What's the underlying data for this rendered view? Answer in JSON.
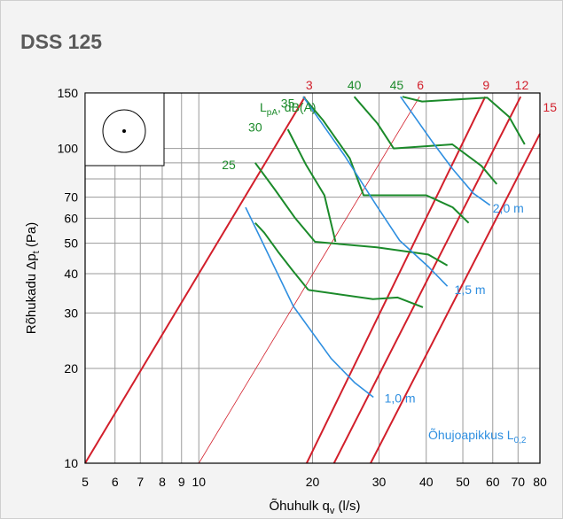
{
  "chart_data": {
    "type": "line",
    "title": "DSS 125",
    "xlabel_main": "Õhuhulk q",
    "xlabel_sub": "v",
    "xlabel_unit": " (l/s)",
    "ylabel_main": "Rõhukadu Δp",
    "ylabel_sub": "t",
    "ylabel_unit": " (Pa)",
    "x_scale": "log",
    "y_scale": "log",
    "xlim": [
      5,
      80
    ],
    "ylim": [
      10,
      150
    ],
    "grid": true,
    "x_ticks": [
      5,
      6,
      7,
      8,
      9,
      10,
      20,
      30,
      40,
      50,
      60,
      70,
      80
    ],
    "y_ticks": [
      10,
      20,
      30,
      40,
      50,
      60,
      70,
      100,
      150
    ],
    "x_gridlines": [
      5,
      6,
      7,
      8,
      9,
      10,
      20,
      30,
      40,
      50,
      60,
      70,
      80
    ],
    "y_gridlines": [
      10,
      20,
      30,
      40,
      50,
      60,
      70,
      80,
      90,
      100,
      150
    ],
    "colors": {
      "effective_area": "#d21f2b",
      "noise": "#1b8a2a",
      "throw": "#2f8fe0",
      "axis": "#000000",
      "grid": "#9a9a9a"
    },
    "effective_area_lines": [
      {
        "label": "3",
        "points": [
          [
            5,
            10
          ],
          [
            19.1,
            146
          ]
        ]
      },
      {
        "label": "6",
        "points": [
          [
            10,
            10
          ],
          [
            38.4,
            146
          ]
        ]
      },
      {
        "label": "9",
        "points": [
          [
            19.3,
            10
          ],
          [
            57.3,
            146
          ]
        ]
      },
      {
        "label": "12",
        "points": [
          [
            22.8,
            10
          ],
          [
            71.1,
            146
          ]
        ]
      },
      {
        "label": "15",
        "points": [
          [
            28.5,
            10
          ],
          [
            80,
            111.4
          ]
        ]
      }
    ],
    "effective_area_labels": [
      {
        "text": "3",
        "at": [
          19.6,
          154
        ]
      },
      {
        "text": "6",
        "at": [
          38.6,
          154
        ]
      },
      {
        "text": "9",
        "at": [
          57.6,
          154
        ]
      },
      {
        "text": "12",
        "at": [
          71.6,
          154
        ]
      },
      {
        "text": "15",
        "at": [
          85,
          131
        ]
      }
    ],
    "noise_label": {
      "main": "L",
      "sub": "pA",
      "rest": ", dB(A)",
      "at": [
        14.5,
        131
      ]
    },
    "noise_level_labels": [
      {
        "text": "35",
        "at": [
          17.2,
          135
        ]
      },
      {
        "text": "30",
        "at": [
          14.1,
          113
        ]
      },
      {
        "text": "25",
        "at": [
          12,
          86
        ]
      },
      {
        "text": "40",
        "at": [
          25.8,
          154
        ]
      },
      {
        "text": "45",
        "at": [
          33.4,
          154
        ]
      }
    ],
    "noise_curves": [
      {
        "name": "25",
        "points": [
          [
            14.1,
            90
          ],
          [
            15.9,
            74
          ],
          [
            18,
            60
          ],
          [
            20.3,
            50.5
          ],
          [
            29.6,
            48.5
          ],
          [
            40.5,
            46
          ],
          [
            45.5,
            42.5
          ]
        ]
      },
      {
        "name": "30",
        "points": [
          [
            17.2,
            115
          ],
          [
            19.2,
            89
          ],
          [
            21.5,
            71
          ],
          [
            23,
            50.5
          ]
        ]
      },
      {
        "name": "35",
        "points": [
          [
            18.9,
            146
          ],
          [
            21.3,
            123
          ],
          [
            25.1,
            93
          ],
          [
            27.3,
            71
          ],
          [
            40,
            71
          ],
          [
            47,
            65
          ],
          [
            51.8,
            58
          ]
        ]
      },
      {
        "name": "40",
        "points": [
          [
            25.8,
            146
          ],
          [
            29.7,
            120
          ],
          [
            32.8,
            100
          ],
          [
            46.9,
            103
          ],
          [
            56,
            88
          ],
          [
            61.5,
            77
          ]
        ]
      },
      {
        "name": "45",
        "points": [
          [
            34.6,
            146
          ],
          [
            39,
            141
          ],
          [
            58,
            145
          ],
          [
            66.3,
            126
          ],
          [
            72.9,
            103
          ]
        ]
      },
      {
        "name": "lower",
        "points": [
          [
            19.5,
            35.5
          ],
          [
            28.9,
            33.2
          ],
          [
            33.6,
            33.6
          ],
          [
            39.2,
            31.3
          ]
        ]
      },
      {
        "name": "lower-diag",
        "points": [
          [
            19.5,
            35.5
          ],
          [
            17.7,
            41
          ],
          [
            16.2,
            47
          ],
          [
            14.9,
            54
          ],
          [
            14.1,
            58
          ]
        ]
      }
    ],
    "throw_curves": [
      {
        "name": "1,0 m",
        "points": [
          [
            13.3,
            65
          ],
          [
            17.8,
            31.5
          ],
          [
            22.4,
            21.5
          ],
          [
            25.9,
            18
          ],
          [
            29,
            16.2
          ]
        ]
      },
      {
        "name": "1,5 m",
        "points": [
          [
            18.9,
            146
          ],
          [
            24.3,
            95
          ],
          [
            29.5,
            66
          ],
          [
            34,
            51
          ],
          [
            40.6,
            42
          ],
          [
            45.5,
            36.5
          ]
        ]
      },
      {
        "name": "2,0 m",
        "points": [
          [
            34.2,
            146
          ],
          [
            41.5,
            105
          ],
          [
            47,
            86
          ],
          [
            53.3,
            72
          ],
          [
            59,
            66
          ]
        ]
      }
    ],
    "throw_labels": [
      {
        "text": "1,0 m",
        "at": [
          31,
          15.6
        ]
      },
      {
        "text": "1,5 m",
        "at": [
          47.5,
          34.5
        ]
      },
      {
        "text": "2,0 m",
        "at": [
          60,
          62.5
        ]
      },
      {
        "text": "Õhujoapikkus L",
        "sub": "0,2",
        "at": [
          40.5,
          11.9
        ]
      }
    ]
  }
}
